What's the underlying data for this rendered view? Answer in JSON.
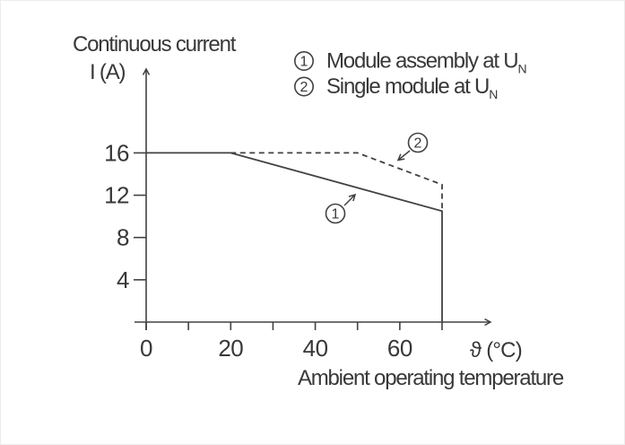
{
  "figure": {
    "background": "#ffffff",
    "ink_color": "#414141",
    "text_color": "#383838"
  },
  "yaxis": {
    "title_line1": "Continuous current",
    "title_line2": "I (A)",
    "ticks": [
      16,
      12,
      8,
      4
    ]
  },
  "xaxis": {
    "unit_label": "ϑ (°C)",
    "caption": "Ambient operating temperature",
    "minor_ticks": [
      0,
      10,
      20,
      30,
      40,
      50,
      60,
      70
    ],
    "labeled_ticks": [
      0,
      20,
      40,
      60
    ]
  },
  "legend": {
    "items": [
      {
        "marker": "1",
        "label": "Module assembly at U",
        "subscript": "N"
      },
      {
        "marker": "2",
        "label": "Single module at U",
        "subscript": "N"
      }
    ]
  },
  "annotations": {
    "items": [
      {
        "marker": "1"
      },
      {
        "marker": "2"
      }
    ]
  },
  "chart_data": {
    "type": "line",
    "title": "",
    "xlabel": "ϑ (°C)",
    "x_caption": "Ambient operating temperature",
    "ylabel": "Continuous current I (A)",
    "xlim": [
      0,
      82
    ],
    "ylim": [
      0,
      24
    ],
    "grid": false,
    "legend_position": "top-right",
    "x_ticks": [
      0,
      10,
      20,
      30,
      40,
      50,
      60,
      70
    ],
    "x_labeled_ticks": [
      0,
      20,
      40,
      60
    ],
    "y_ticks": [
      4,
      8,
      12,
      16
    ],
    "series": [
      {
        "marker": "1",
        "name": "Module assembly at UN",
        "style": "solid",
        "points": [
          [
            0,
            16
          ],
          [
            20,
            16
          ],
          [
            70,
            10.5
          ],
          [
            70,
            0
          ]
        ]
      },
      {
        "marker": "2",
        "name": "Single module at UN",
        "style": "dashed",
        "points": [
          [
            20,
            16
          ],
          [
            50,
            16
          ],
          [
            70,
            13
          ],
          [
            70,
            10.5
          ]
        ]
      }
    ]
  }
}
